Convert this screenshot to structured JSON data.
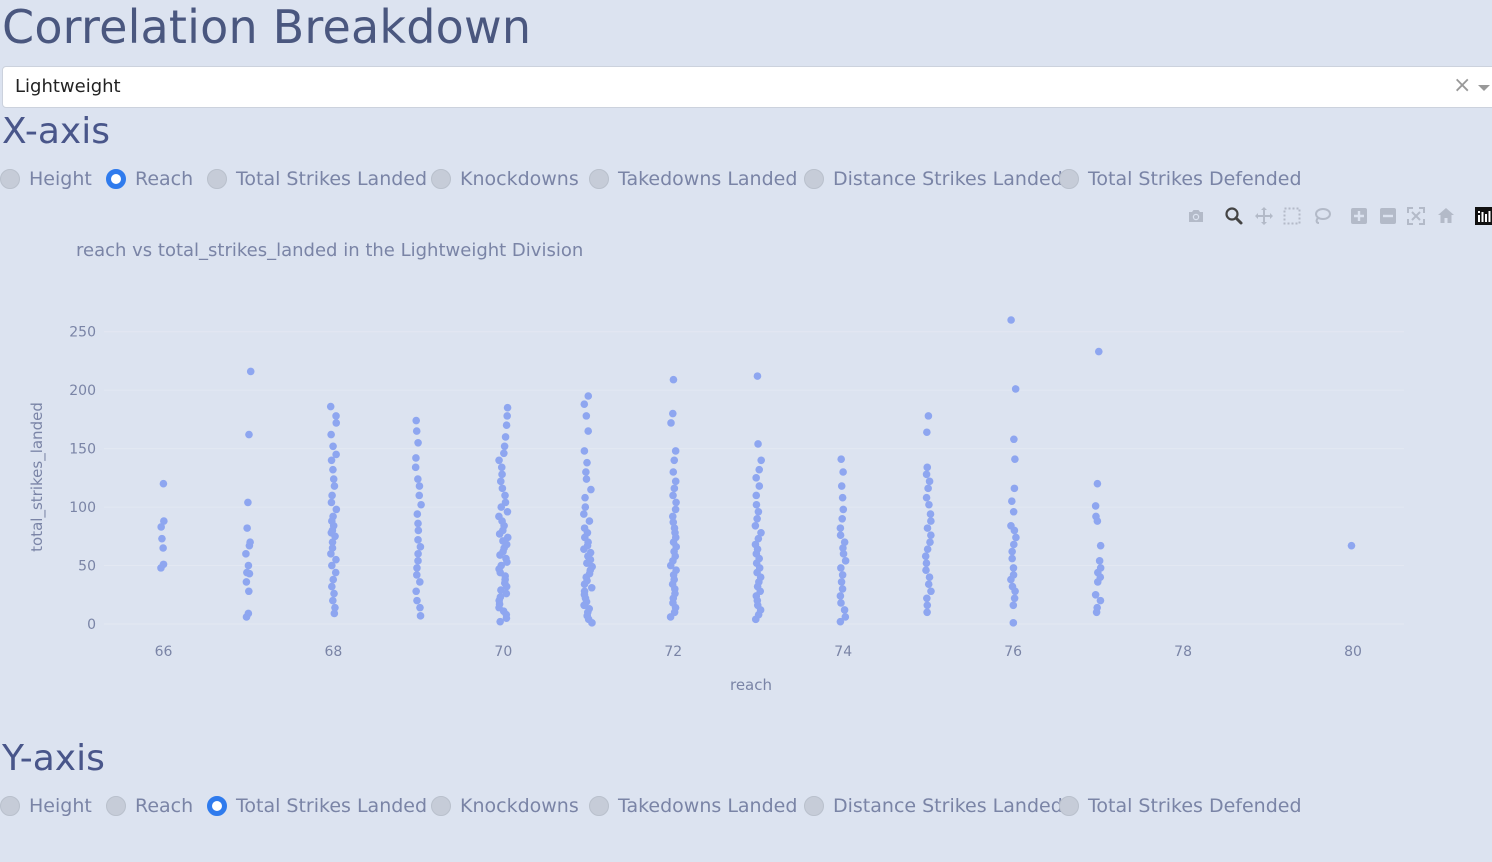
{
  "page": {
    "title": "Correlation Breakdown"
  },
  "dropdown": {
    "value": "Lightweight",
    "clear_symbol": "×"
  },
  "x_axis_section": {
    "label": "X-axis",
    "options": [
      "Height",
      "Reach",
      "Total Strikes Landed",
      "Knockdowns",
      "Takedowns Landed",
      "Distance Strikes Landed",
      "Total Strikes Defended"
    ],
    "selected": "Reach"
  },
  "y_axis_section": {
    "label": "Y-axis",
    "options": [
      "Height",
      "Reach",
      "Total Strikes Landed",
      "Knockdowns",
      "Takedowns Landed",
      "Distance Strikes Landed",
      "Total Strikes Defended"
    ],
    "selected": "Total Strikes Landed"
  },
  "modebar": {
    "icons": [
      "camera-icon",
      "zoom-icon",
      "pan-icon",
      "box-select-icon",
      "lasso-icon",
      "zoom-in-icon",
      "zoom-out-icon",
      "autoscale-icon",
      "reset-axes-icon",
      "plotly-logo-icon"
    ],
    "active": "zoom-icon"
  },
  "colors": {
    "marker": "#8ea6f0",
    "grid": "#e3e8f2",
    "radio_checked": "#2f7bed"
  },
  "chart_data": {
    "type": "scatter",
    "title": "reach vs total_strikes_landed in the Lightweight Division",
    "xlabel": "reach",
    "ylabel": "total_strikes_landed",
    "xlim": [
      65.3,
      80.6
    ],
    "ylim": [
      0,
      260
    ],
    "xticks": [
      66,
      68,
      70,
      72,
      74,
      76,
      78,
      80
    ],
    "yticks": [
      0,
      50,
      100,
      150,
      200,
      250
    ],
    "grid": true,
    "series": [
      {
        "points": [
          [
            66,
            120
          ],
          [
            66,
            88
          ],
          [
            66,
            83
          ],
          [
            66,
            73
          ],
          [
            66,
            65
          ],
          [
            66,
            51
          ],
          [
            66,
            48
          ],
          [
            67,
            216
          ],
          [
            67,
            162
          ],
          [
            67,
            104
          ],
          [
            67,
            82
          ],
          [
            67,
            70
          ],
          [
            67,
            67
          ],
          [
            67,
            60
          ],
          [
            67,
            50
          ],
          [
            67,
            44
          ],
          [
            67,
            43
          ],
          [
            67,
            36
          ],
          [
            67,
            28
          ],
          [
            67,
            9
          ],
          [
            67,
            6
          ],
          [
            68,
            186
          ],
          [
            68,
            178
          ],
          [
            68,
            172
          ],
          [
            68,
            162
          ],
          [
            68,
            152
          ],
          [
            68,
            145
          ],
          [
            68,
            140
          ],
          [
            68,
            132
          ],
          [
            68,
            124
          ],
          [
            68,
            118
          ],
          [
            68,
            110
          ],
          [
            68,
            104
          ],
          [
            68,
            98
          ],
          [
            68,
            92
          ],
          [
            68,
            88
          ],
          [
            68,
            84
          ],
          [
            68,
            80
          ],
          [
            68,
            78
          ],
          [
            68,
            75
          ],
          [
            68,
            70
          ],
          [
            68,
            65
          ],
          [
            68,
            60
          ],
          [
            68,
            55
          ],
          [
            68,
            50
          ],
          [
            68,
            44
          ],
          [
            68,
            38
          ],
          [
            68,
            32
          ],
          [
            68,
            26
          ],
          [
            68,
            20
          ],
          [
            68,
            14
          ],
          [
            68,
            9
          ],
          [
            69,
            174
          ],
          [
            69,
            165
          ],
          [
            69,
            155
          ],
          [
            69,
            142
          ],
          [
            69,
            134
          ],
          [
            69,
            124
          ],
          [
            69,
            118
          ],
          [
            69,
            110
          ],
          [
            69,
            102
          ],
          [
            69,
            94
          ],
          [
            69,
            86
          ],
          [
            69,
            80
          ],
          [
            69,
            72
          ],
          [
            69,
            66
          ],
          [
            69,
            60
          ],
          [
            69,
            54
          ],
          [
            69,
            48
          ],
          [
            69,
            42
          ],
          [
            69,
            36
          ],
          [
            69,
            28
          ],
          [
            69,
            20
          ],
          [
            69,
            14
          ],
          [
            69,
            7
          ],
          [
            70,
            185
          ],
          [
            70,
            178
          ],
          [
            70,
            170
          ],
          [
            70,
            160
          ],
          [
            70,
            152
          ],
          [
            70,
            146
          ],
          [
            70,
            140
          ],
          [
            70,
            134
          ],
          [
            70,
            128
          ],
          [
            70,
            122
          ],
          [
            70,
            116
          ],
          [
            70,
            110
          ],
          [
            70,
            104
          ],
          [
            70,
            100
          ],
          [
            70,
            96
          ],
          [
            70,
            92
          ],
          [
            70,
            88
          ],
          [
            70,
            84
          ],
          [
            70,
            80
          ],
          [
            70,
            77
          ],
          [
            70,
            74
          ],
          [
            70,
            71
          ],
          [
            70,
            68
          ],
          [
            70,
            65
          ],
          [
            70,
            62
          ],
          [
            70,
            59
          ],
          [
            70,
            56
          ],
          [
            70,
            53
          ],
          [
            70,
            50
          ],
          [
            70,
            47
          ],
          [
            70,
            44
          ],
          [
            70,
            41
          ],
          [
            70,
            38
          ],
          [
            70,
            35
          ],
          [
            70,
            32
          ],
          [
            70,
            29
          ],
          [
            70,
            26
          ],
          [
            70,
            23
          ],
          [
            70,
            20
          ],
          [
            70,
            17
          ],
          [
            70,
            14
          ],
          [
            70,
            11
          ],
          [
            70,
            8
          ],
          [
            70,
            5
          ],
          [
            70,
            2
          ],
          [
            71,
            195
          ],
          [
            71,
            188
          ],
          [
            71,
            178
          ],
          [
            71,
            165
          ],
          [
            71,
            148
          ],
          [
            71,
            138
          ],
          [
            71,
            130
          ],
          [
            71,
            124
          ],
          [
            71,
            115
          ],
          [
            71,
            108
          ],
          [
            71,
            100
          ],
          [
            71,
            94
          ],
          [
            71,
            88
          ],
          [
            71,
            82
          ],
          [
            71,
            78
          ],
          [
            71,
            74
          ],
          [
            71,
            70
          ],
          [
            71,
            67
          ],
          [
            71,
            64
          ],
          [
            71,
            61
          ],
          [
            71,
            58
          ],
          [
            71,
            55
          ],
          [
            71,
            52
          ],
          [
            71,
            49
          ],
          [
            71,
            46
          ],
          [
            71,
            43
          ],
          [
            71,
            40
          ],
          [
            71,
            37
          ],
          [
            71,
            34
          ],
          [
            71,
            31
          ],
          [
            71,
            28
          ],
          [
            71,
            25
          ],
          [
            71,
            22
          ],
          [
            71,
            19
          ],
          [
            71,
            16
          ],
          [
            71,
            13
          ],
          [
            71,
            10
          ],
          [
            71,
            7
          ],
          [
            71,
            4
          ],
          [
            71,
            1
          ],
          [
            72,
            209
          ],
          [
            72,
            180
          ],
          [
            72,
            172
          ],
          [
            72,
            148
          ],
          [
            72,
            140
          ],
          [
            72,
            130
          ],
          [
            72,
            122
          ],
          [
            72,
            116
          ],
          [
            72,
            110
          ],
          [
            72,
            104
          ],
          [
            72,
            98
          ],
          [
            72,
            92
          ],
          [
            72,
            87
          ],
          [
            72,
            82
          ],
          [
            72,
            78
          ],
          [
            72,
            74
          ],
          [
            72,
            70
          ],
          [
            72,
            66
          ],
          [
            72,
            62
          ],
          [
            72,
            58
          ],
          [
            72,
            54
          ],
          [
            72,
            50
          ],
          [
            72,
            46
          ],
          [
            72,
            42
          ],
          [
            72,
            38
          ],
          [
            72,
            34
          ],
          [
            72,
            30
          ],
          [
            72,
            26
          ],
          [
            72,
            22
          ],
          [
            72,
            18
          ],
          [
            72,
            14
          ],
          [
            72,
            10
          ],
          [
            72,
            6
          ],
          [
            73,
            212
          ],
          [
            73,
            154
          ],
          [
            73,
            140
          ],
          [
            73,
            132
          ],
          [
            73,
            125
          ],
          [
            73,
            118
          ],
          [
            73,
            110
          ],
          [
            73,
            102
          ],
          [
            73,
            96
          ],
          [
            73,
            90
          ],
          [
            73,
            84
          ],
          [
            73,
            78
          ],
          [
            73,
            73
          ],
          [
            73,
            68
          ],
          [
            73,
            64
          ],
          [
            73,
            60
          ],
          [
            73,
            56
          ],
          [
            73,
            52
          ],
          [
            73,
            48
          ],
          [
            73,
            44
          ],
          [
            73,
            40
          ],
          [
            73,
            36
          ],
          [
            73,
            32
          ],
          [
            73,
            28
          ],
          [
            73,
            24
          ],
          [
            73,
            20
          ],
          [
            73,
            16
          ],
          [
            73,
            12
          ],
          [
            73,
            8
          ],
          [
            73,
            4
          ],
          [
            74,
            141
          ],
          [
            74,
            130
          ],
          [
            74,
            118
          ],
          [
            74,
            108
          ],
          [
            74,
            98
          ],
          [
            74,
            90
          ],
          [
            74,
            82
          ],
          [
            74,
            76
          ],
          [
            74,
            70
          ],
          [
            74,
            65
          ],
          [
            74,
            60
          ],
          [
            74,
            54
          ],
          [
            74,
            48
          ],
          [
            74,
            42
          ],
          [
            74,
            36
          ],
          [
            74,
            30
          ],
          [
            74,
            24
          ],
          [
            74,
            18
          ],
          [
            74,
            12
          ],
          [
            74,
            6
          ],
          [
            74,
            2
          ],
          [
            75,
            178
          ],
          [
            75,
            164
          ],
          [
            75,
            134
          ],
          [
            75,
            128
          ],
          [
            75,
            122
          ],
          [
            75,
            116
          ],
          [
            75,
            108
          ],
          [
            75,
            102
          ],
          [
            75,
            94
          ],
          [
            75,
            88
          ],
          [
            75,
            82
          ],
          [
            75,
            76
          ],
          [
            75,
            70
          ],
          [
            75,
            64
          ],
          [
            75,
            58
          ],
          [
            75,
            52
          ],
          [
            75,
            46
          ],
          [
            75,
            40
          ],
          [
            75,
            34
          ],
          [
            75,
            28
          ],
          [
            75,
            22
          ],
          [
            75,
            16
          ],
          [
            75,
            10
          ],
          [
            76,
            260
          ],
          [
            76,
            201
          ],
          [
            76,
            158
          ],
          [
            76,
            141
          ],
          [
            76,
            116
          ],
          [
            76,
            105
          ],
          [
            76,
            96
          ],
          [
            76,
            84
          ],
          [
            76,
            80
          ],
          [
            76,
            74
          ],
          [
            76,
            68
          ],
          [
            76,
            62
          ],
          [
            76,
            56
          ],
          [
            76,
            48
          ],
          [
            76,
            42
          ],
          [
            76,
            38
          ],
          [
            76,
            32
          ],
          [
            76,
            28
          ],
          [
            76,
            22
          ],
          [
            76,
            16
          ],
          [
            76,
            1
          ],
          [
            77,
            233
          ],
          [
            77,
            120
          ],
          [
            77,
            101
          ],
          [
            77,
            92
          ],
          [
            77,
            88
          ],
          [
            77,
            67
          ],
          [
            77,
            54
          ],
          [
            77,
            48
          ],
          [
            77,
            44
          ],
          [
            77,
            40
          ],
          [
            77,
            36
          ],
          [
            77,
            25
          ],
          [
            77,
            20
          ],
          [
            77,
            14
          ],
          [
            77,
            10
          ],
          [
            80,
            67
          ]
        ]
      }
    ]
  }
}
